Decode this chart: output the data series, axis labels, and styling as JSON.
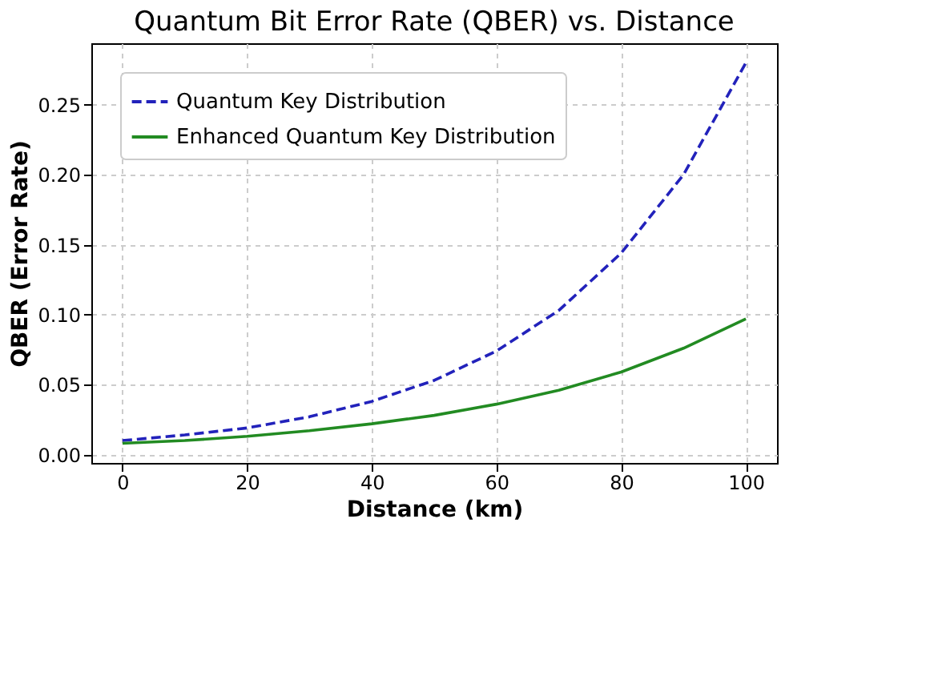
{
  "chart_data": {
    "type": "line",
    "title": "Quantum Bit Error Rate (QBER) vs. Distance",
    "xlabel": "Distance (km)",
    "ylabel": "QBER (Error Rate)",
    "x": [
      0,
      10,
      20,
      30,
      40,
      50,
      60,
      70,
      80,
      90,
      100
    ],
    "series": [
      {
        "name": "Quantum Key Distribution",
        "color": "#2222bb",
        "line_style": "dashed",
        "values": [
          0.01,
          0.014,
          0.019,
          0.027,
          0.038,
          0.053,
          0.074,
          0.103,
          0.144,
          0.2,
          0.28
        ]
      },
      {
        "name": "Enhanced Quantum Key Distribution",
        "color": "#228b22",
        "line_style": "solid",
        "values": [
          0.008,
          0.01,
          0.013,
          0.017,
          0.022,
          0.028,
          0.036,
          0.046,
          0.059,
          0.076,
          0.097
        ]
      }
    ],
    "xlim": [
      -5,
      105
    ],
    "xticks": [
      0,
      20,
      40,
      60,
      80,
      100
    ],
    "ylim": [
      -0.006,
      0.294
    ],
    "yticks": [
      {
        "value": 0,
        "label": "0.00"
      },
      0.05,
      {
        "value": 0.1,
        "label": "0.10"
      },
      0.15,
      {
        "value": 0.2,
        "label": "0.20"
      },
      0.25
    ],
    "grid": true,
    "legend": "top left",
    "marker": "none"
  }
}
